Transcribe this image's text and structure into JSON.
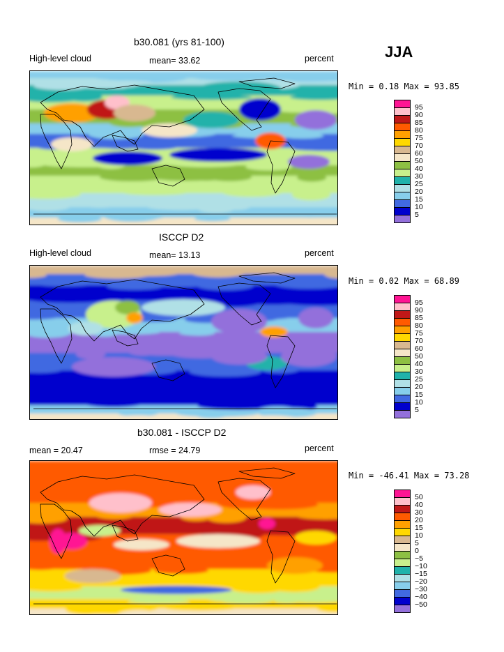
{
  "season": "JJA",
  "panels": [
    {
      "title": "b30.081 (yrs 81-100)",
      "left_label": "High-level cloud",
      "mean_text": "mean=  33.62",
      "right_label": "percent",
      "stats": "Min =   0.18 Max =  93.85",
      "legend_levels": [
        "95",
        "90",
        "85",
        "80",
        "75",
        "70",
        "60",
        "50",
        "40",
        "30",
        "25",
        "20",
        "15",
        "10",
        "5"
      ],
      "legend_colors": [
        "#ff1493",
        "#ffc0cb",
        "#c01818",
        "#ff5a00",
        "#ffa000",
        "#ffd800",
        "#d8b890",
        "#f5e6c8",
        "#8dc043",
        "#c8f08c",
        "#20b2aa",
        "#b0e0e6",
        "#87ceeb",
        "#4169e1",
        "#0000cd",
        "#9370db"
      ],
      "palette": "model"
    },
    {
      "title": "ISCCP D2",
      "left_label": "High-level cloud",
      "mean_text": "mean=  13.13",
      "right_label": "percent",
      "stats": "Min =   0.02 Max =  68.89",
      "legend_levels": [
        "95",
        "90",
        "85",
        "80",
        "75",
        "70",
        "60",
        "50",
        "40",
        "30",
        "25",
        "20",
        "15",
        "10",
        "5"
      ],
      "legend_colors": [
        "#ff1493",
        "#ffc0cb",
        "#c01818",
        "#ff5a00",
        "#ffa000",
        "#ffd800",
        "#d8b890",
        "#f5e6c8",
        "#8dc043",
        "#c8f08c",
        "#20b2aa",
        "#b0e0e6",
        "#87ceeb",
        "#4169e1",
        "#0000cd",
        "#9370db"
      ],
      "palette": "obs"
    },
    {
      "title": "b30.081 - ISCCP D2",
      "left_label": "mean =  20.47",
      "mean_text": "rmse =  24.79",
      "right_label": "percent",
      "stats": "Min = -46.41 Max =  73.28",
      "legend_levels": [
        "50",
        "40",
        "30",
        "20",
        "15",
        "10",
        "5",
        "0",
        "−5",
        "−10",
        "−15",
        "−20",
        "−30",
        "−40",
        "−50"
      ],
      "legend_colors": [
        "#ff1493",
        "#ffc0cb",
        "#c01818",
        "#ff5a00",
        "#ffa000",
        "#ffd800",
        "#d8b890",
        "#f5e6c8",
        "#8dc043",
        "#c8f08c",
        "#20b2aa",
        "#b0e0e6",
        "#87ceeb",
        "#4169e1",
        "#0000cd",
        "#9370db"
      ],
      "palette": "diff"
    }
  ]
}
